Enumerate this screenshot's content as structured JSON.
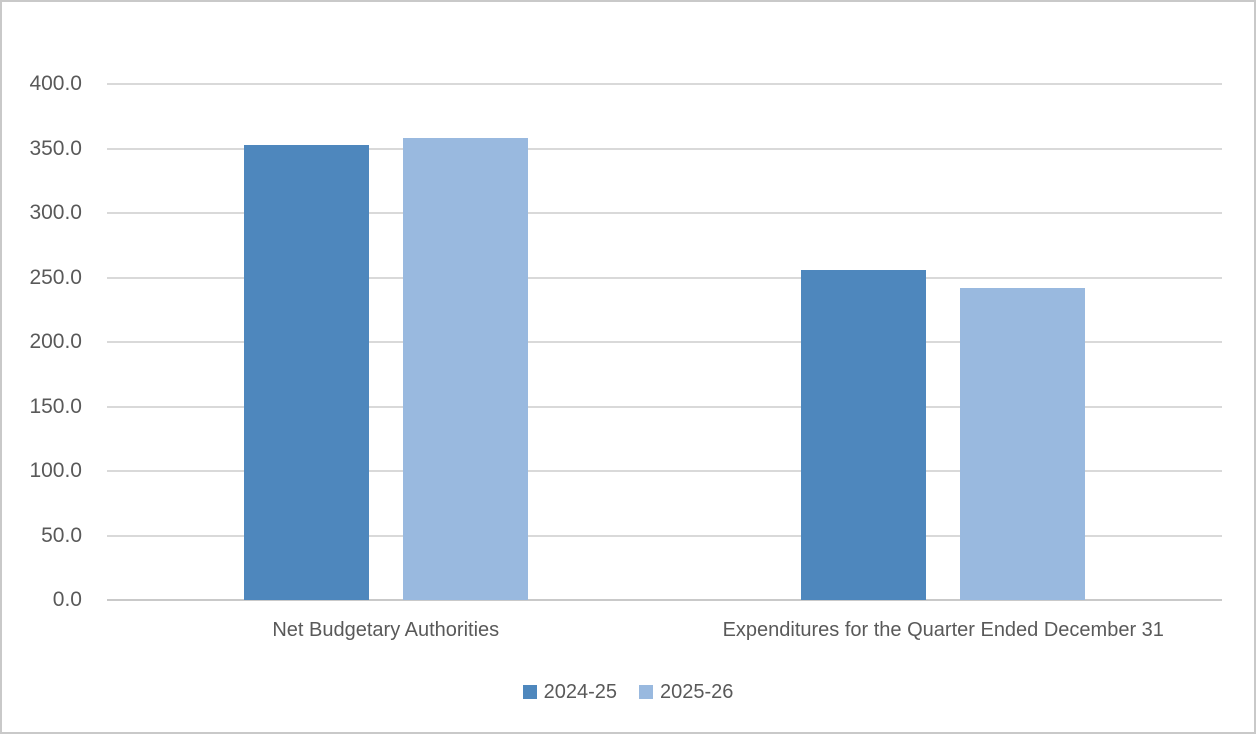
{
  "chart_data": {
    "type": "bar",
    "title": "",
    "xlabel": "",
    "ylabel": "",
    "categories": [
      "Net Budgetary Authorities",
      "Expenditures for the Quarter Ended December 31"
    ],
    "series": [
      {
        "name": "2024-25",
        "color": "#4E87BD",
        "values": [
          352.9,
          255.9
        ]
      },
      {
        "name": "2025-26",
        "color": "#99B9DF",
        "values": [
          358.0,
          241.6
        ]
      }
    ],
    "ylim": [
      0,
      400
    ],
    "ytick_step": 50,
    "yticks": [
      "0.0",
      "50.0",
      "100.0",
      "150.0",
      "200.0",
      "250.0",
      "300.0",
      "350.0",
      "400.0"
    ],
    "grid": true,
    "legend_position": "bottom",
    "colors": {
      "axis_text": "#595959",
      "gridline": "#D9D9D9",
      "axis_line": "#C9C9C9",
      "background": "#FFFFFF",
      "frame_border": "#C9C9C9"
    }
  }
}
